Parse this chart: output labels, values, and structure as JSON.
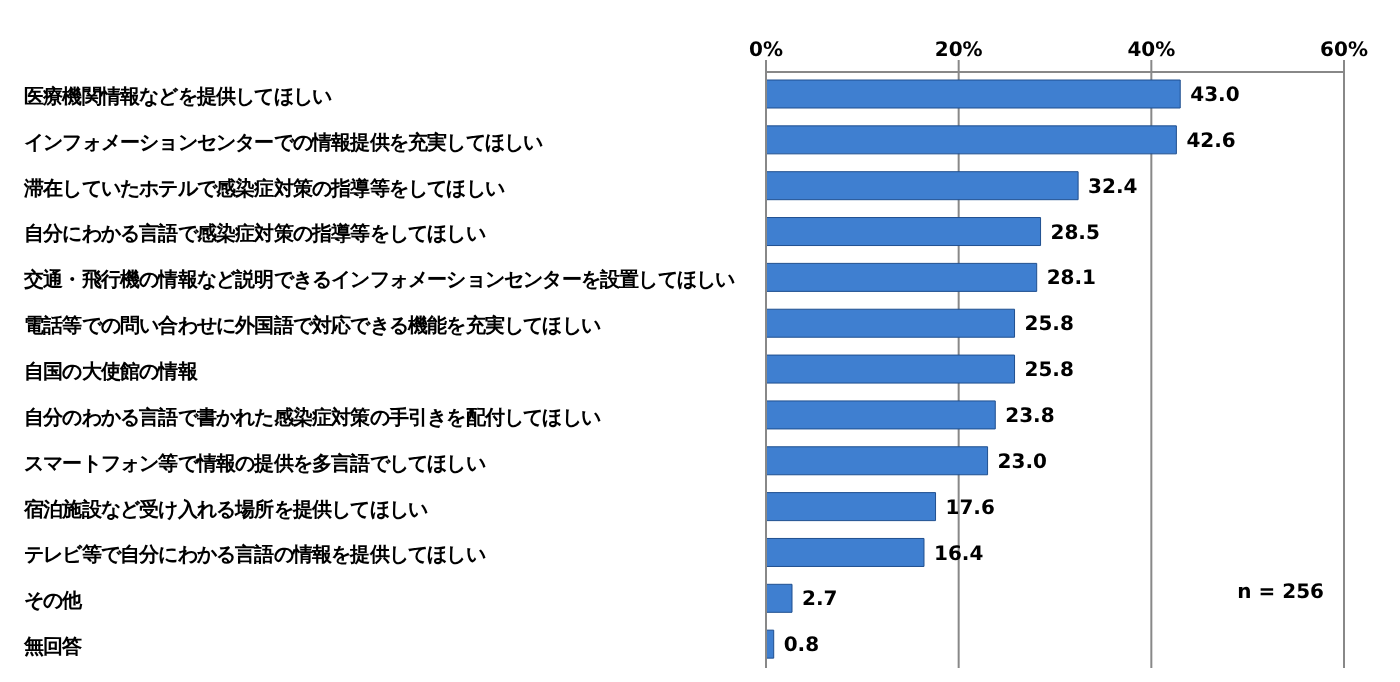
{
  "chart_data": {
    "type": "bar",
    "orientation": "horizontal",
    "categories": [
      "医療機関情報などを提供してほしい",
      "インフォメーションセンターでの情報提供を充実してほしい",
      "滞在していたホテルで感染症対策の指導等をしてほしい",
      "自分にわかる言語で感染症対策の指導等をしてほしい",
      "交通・飛行機の情報など説明できるインフォメーションセンターを設置してほしい",
      "電話等での問い合わせに外国語で対応できる機能を充実してほしい",
      "自国の大使館の情報",
      "自分のわかる言語で書かれた感染症対策の手引きを配付してほしい",
      "スマートフォン等で情報の提供を多言語でしてほしい",
      "宿泊施設など受け入れる場所を提供してほしい",
      "テレビ等で自分にわかる言語の情報を提供してほしい",
      "その他",
      "無回答"
    ],
    "values": [
      43.0,
      42.6,
      32.4,
      28.5,
      28.1,
      25.8,
      25.8,
      23.8,
      23.0,
      17.6,
      16.4,
      2.7,
      0.8
    ],
    "value_labels": [
      "43.0",
      "42.6",
      "32.4",
      "28.5",
      "28.1",
      "25.8",
      "25.8",
      "23.8",
      "23.0",
      "17.6",
      "16.4",
      "2.7",
      "0.8"
    ],
    "color": "#3f7fd0",
    "xlim": [
      0,
      60
    ],
    "xticks": [
      {
        "value": 0,
        "label": "0%"
      },
      {
        "value": 20,
        "label": "20%"
      },
      {
        "value": 40,
        "label": "40%"
      },
      {
        "value": 60,
        "label": "60%"
      }
    ],
    "grid": "x",
    "legend": false,
    "annotations": [
      "n = 256"
    ]
  }
}
